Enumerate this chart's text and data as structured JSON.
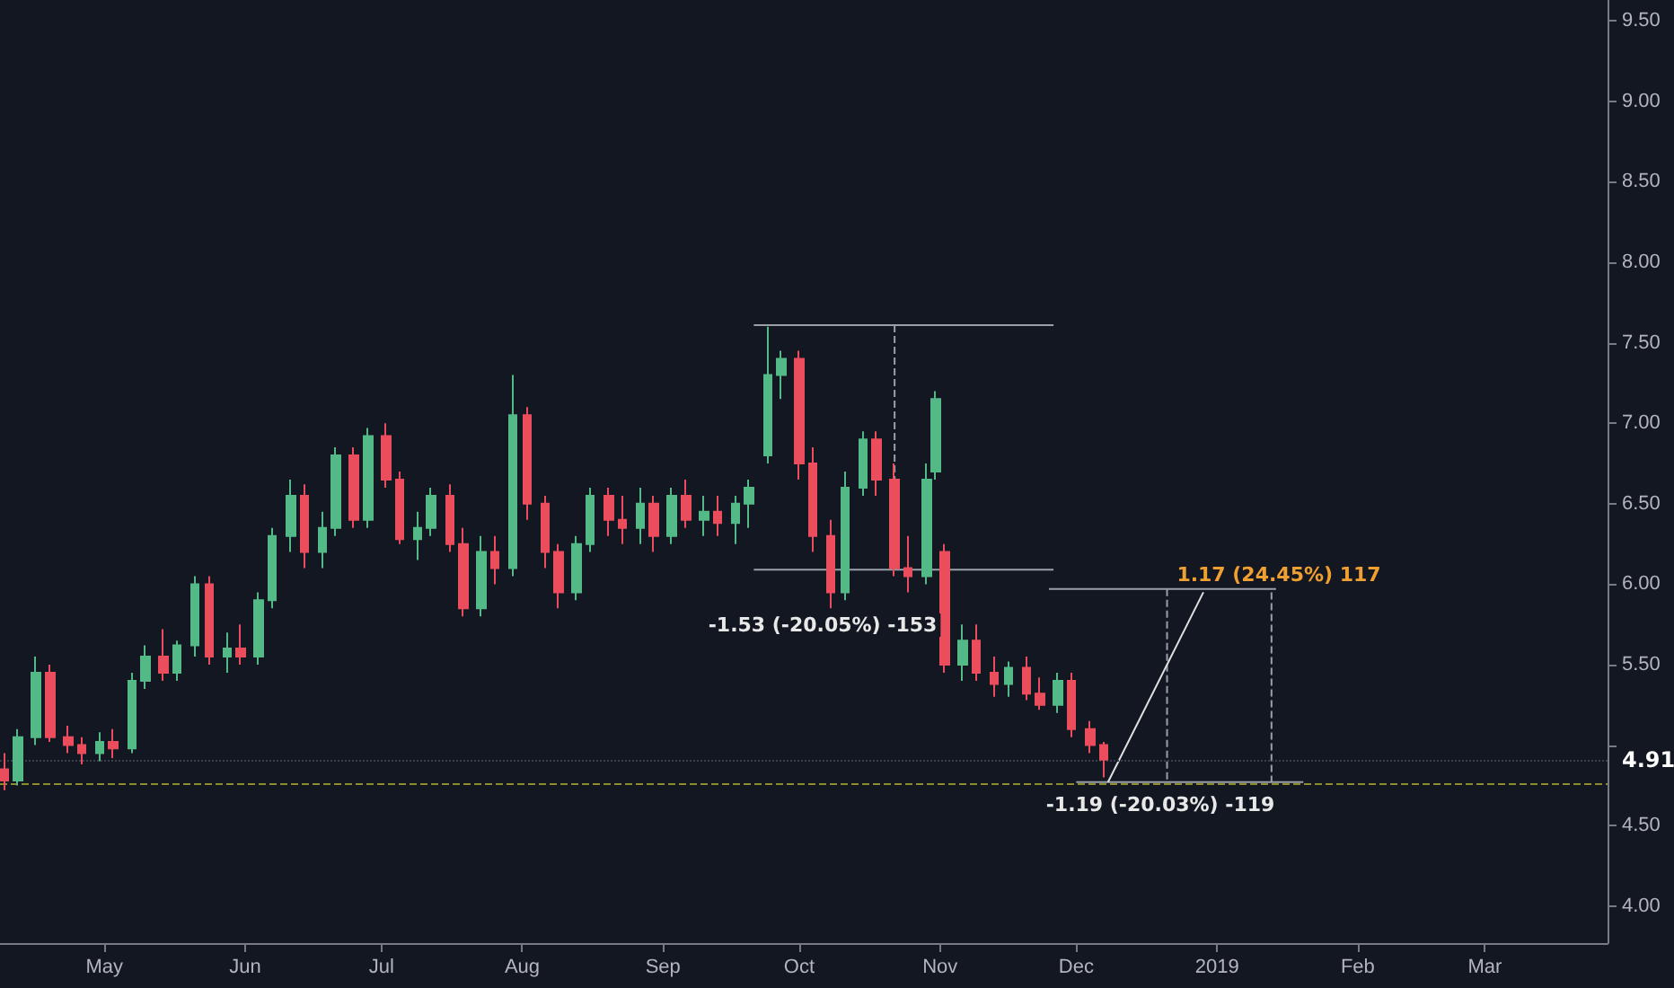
{
  "chart_data": {
    "type": "candlestick",
    "xlim": [
      "2018-04-08",
      "2019-03-28"
    ],
    "ylim": [
      3.77,
      9.63
    ],
    "xticks": [
      {
        "value": "2018-05-01",
        "label": "May"
      },
      {
        "value": "2018-06-01",
        "label": "Jun"
      },
      {
        "value": "2018-07-01",
        "label": "Jul"
      },
      {
        "value": "2018-08-01",
        "label": "Aug"
      },
      {
        "value": "2018-09-01",
        "label": "Sep"
      },
      {
        "value": "2018-10-01",
        "label": "Oct"
      },
      {
        "value": "2018-11-01",
        "label": "Nov"
      },
      {
        "value": "2018-12-01",
        "label": "Dec"
      },
      {
        "value": "2019-01-01",
        "label": "2019"
      },
      {
        "value": "2019-02-01",
        "label": "Feb"
      },
      {
        "value": "2019-03-01",
        "label": "Mar"
      }
    ],
    "yticks": [
      {
        "value": 4,
        "label": "4.00"
      },
      {
        "value": 4.5,
        "label": "4.50"
      },
      {
        "value": 5,
        "label": null
      },
      {
        "value": 5.5,
        "label": "5.50"
      },
      {
        "value": 6,
        "label": "6.00"
      },
      {
        "value": 6.5,
        "label": "6.50"
      },
      {
        "value": 7,
        "label": "7.00"
      },
      {
        "value": 7.5,
        "label": "7.50"
      },
      {
        "value": 8,
        "label": "8.00"
      },
      {
        "value": 8.5,
        "label": "8.50"
      },
      {
        "value": 9,
        "label": "9.00"
      },
      {
        "value": 9.5,
        "label": "9.50"
      }
    ],
    "grid": false,
    "series": [
      {
        "colors": [
          "#eb4d5c",
          "#53b987",
          "#53b987",
          "#eb4d5c",
          "#eb4d5c",
          "#eb4d5c",
          "#53b987",
          "#eb4d5c",
          "#53b987",
          "#53b987",
          "#eb4d5c",
          "#53b987",
          "#53b987",
          "#eb4d5c",
          "#53b987",
          "#eb4d5c",
          "#53b987",
          "#53b987",
          "#53b987",
          "#eb4d5c",
          "#53b987",
          "#53b987",
          "#eb4d5c",
          "#53b987",
          "#eb4d5c",
          "#eb4d5c",
          "#53b987",
          "#53b987",
          "#eb4d5c",
          "#eb4d5c",
          "#53b987",
          "#eb4d5c",
          "#53b987",
          "#eb4d5c",
          "#eb4d5c",
          "#eb4d5c",
          "#53b987",
          "#53b987",
          "#eb4d5c",
          "#eb4d5c",
          "#53b987",
          "#eb4d5c",
          "#53b987",
          "#eb4d5c",
          "#53b987",
          "#eb4d5c",
          "#53b987",
          "#53b987",
          "#53b987",
          "#53b987",
          "#eb4d5c",
          "#eb4d5c",
          "#eb4d5c",
          "#53b987",
          "#53b987",
          "#eb4d5c",
          "#eb4d5c",
          "#eb4d5c",
          "#53b987",
          "#53b987",
          "#eb4d5c",
          "#53b987",
          "#eb4d5c",
          "#eb4d5c",
          "#53b987",
          "#eb4d5c",
          "#eb4d5c",
          "#53b987",
          "#eb4d5c",
          "#eb4d5c",
          "#eb4d5c"
        ],
        "x": [
          "2018-04-09",
          "2018-04-12",
          "2018-04-16",
          "2018-04-19",
          "2018-04-23",
          "2018-04-26",
          "2018-04-30",
          "2018-05-03",
          "2018-05-07",
          "2018-05-10",
          "2018-05-14",
          "2018-05-17",
          "2018-05-21",
          "2018-05-24",
          "2018-05-28",
          "2018-05-31",
          "2018-06-04",
          "2018-06-07",
          "2018-06-11",
          "2018-06-14",
          "2018-06-18",
          "2018-06-21",
          "2018-06-25",
          "2018-06-28",
          "2018-07-02",
          "2018-07-05",
          "2018-07-09",
          "2018-07-12",
          "2018-07-16",
          "2018-07-19",
          "2018-07-23",
          "2018-07-26",
          "2018-07-30",
          "2018-08-02",
          "2018-08-06",
          "2018-08-09",
          "2018-08-13",
          "2018-08-16",
          "2018-08-20",
          "2018-08-23",
          "2018-08-27",
          "2018-08-30",
          "2018-09-03",
          "2018-09-06",
          "2018-09-10",
          "2018-09-13",
          "2018-09-17",
          "2018-09-20",
          "2018-09-24",
          "2018-09-27",
          "2018-10-01",
          "2018-10-04",
          "2018-10-08",
          "2018-10-11",
          "2018-10-15",
          "2018-10-18",
          "2018-10-22",
          "2018-10-25",
          "2018-10-29",
          "2018-10-31",
          "2018-11-02",
          "2018-11-06",
          "2018-11-09",
          "2018-11-13",
          "2018-11-16",
          "2018-11-20",
          "2018-11-23",
          "2018-11-27",
          "2018-11-30",
          "2018-12-04",
          "2018-12-07"
        ],
        "ohlc": [
          [
            4.85,
            4.95,
            4.72,
            4.78
          ],
          [
            4.78,
            5.1,
            4.75,
            5.05
          ],
          [
            5.05,
            5.55,
            5.0,
            5.45
          ],
          [
            5.45,
            5.5,
            5.02,
            5.05
          ],
          [
            5.05,
            5.12,
            4.95,
            5.0
          ],
          [
            5.0,
            5.05,
            4.88,
            4.95
          ],
          [
            4.95,
            5.08,
            4.9,
            5.02
          ],
          [
            5.02,
            5.1,
            4.92,
            4.98
          ],
          [
            4.98,
            5.45,
            4.95,
            5.4
          ],
          [
            5.4,
            5.62,
            5.35,
            5.55
          ],
          [
            5.55,
            5.72,
            5.4,
            5.45
          ],
          [
            5.45,
            5.65,
            5.4,
            5.62
          ],
          [
            5.62,
            6.05,
            5.55,
            6.0
          ],
          [
            6.0,
            6.05,
            5.5,
            5.55
          ],
          [
            5.55,
            5.7,
            5.45,
            5.6
          ],
          [
            5.6,
            5.75,
            5.5,
            5.55
          ],
          [
            5.55,
            5.95,
            5.5,
            5.9
          ],
          [
            5.9,
            6.35,
            5.85,
            6.3
          ],
          [
            6.3,
            6.65,
            6.2,
            6.55
          ],
          [
            6.55,
            6.62,
            6.1,
            6.2
          ],
          [
            6.2,
            6.45,
            6.1,
            6.35
          ],
          [
            6.35,
            6.85,
            6.3,
            6.8
          ],
          [
            6.8,
            6.85,
            6.35,
            6.4
          ],
          [
            6.4,
            6.97,
            6.35,
            6.92
          ],
          [
            6.92,
            7.0,
            6.6,
            6.65
          ],
          [
            6.65,
            6.7,
            6.25,
            6.28
          ],
          [
            6.28,
            6.45,
            6.15,
            6.35
          ],
          [
            6.35,
            6.6,
            6.3,
            6.55
          ],
          [
            6.55,
            6.62,
            6.2,
            6.25
          ],
          [
            6.25,
            6.35,
            5.8,
            5.85
          ],
          [
            5.85,
            6.3,
            5.8,
            6.2
          ],
          [
            6.2,
            6.3,
            6.0,
            6.1
          ],
          [
            6.1,
            7.3,
            6.05,
            7.05
          ],
          [
            7.05,
            7.1,
            6.4,
            6.5
          ],
          [
            6.5,
            6.55,
            6.1,
            6.2
          ],
          [
            6.2,
            6.25,
            5.85,
            5.95
          ],
          [
            5.95,
            6.3,
            5.9,
            6.25
          ],
          [
            6.25,
            6.6,
            6.2,
            6.55
          ],
          [
            6.55,
            6.6,
            6.3,
            6.4
          ],
          [
            6.4,
            6.55,
            6.25,
            6.35
          ],
          [
            6.35,
            6.6,
            6.25,
            6.5
          ],
          [
            6.5,
            6.55,
            6.2,
            6.3
          ],
          [
            6.3,
            6.6,
            6.25,
            6.55
          ],
          [
            6.55,
            6.65,
            6.35,
            6.4
          ],
          [
            6.4,
            6.55,
            6.3,
            6.45
          ],
          [
            6.45,
            6.55,
            6.3,
            6.38
          ],
          [
            6.38,
            6.55,
            6.25,
            6.5
          ],
          [
            6.5,
            6.65,
            6.35,
            6.6
          ],
          [
            6.8,
            7.6,
            6.75,
            7.3
          ],
          [
            7.3,
            7.45,
            7.15,
            7.4
          ],
          [
            7.4,
            7.45,
            6.65,
            6.75
          ],
          [
            6.75,
            6.85,
            6.2,
            6.3
          ],
          [
            6.3,
            6.4,
            5.85,
            5.95
          ],
          [
            5.95,
            6.7,
            5.9,
            6.6
          ],
          [
            6.6,
            6.95,
            6.55,
            6.9
          ],
          [
            6.9,
            6.95,
            6.55,
            6.65
          ],
          [
            6.65,
            6.75,
            6.05,
            6.1
          ],
          [
            6.1,
            6.3,
            5.95,
            6.05
          ],
          [
            6.05,
            6.75,
            6.0,
            6.65
          ],
          [
            6.7,
            7.2,
            6.65,
            7.15
          ],
          [
            6.2,
            6.25,
            5.45,
            5.5
          ],
          [
            5.5,
            5.75,
            5.4,
            5.65
          ],
          [
            5.65,
            5.75,
            5.4,
            5.45
          ],
          [
            5.45,
            5.55,
            5.3,
            5.38
          ],
          [
            5.38,
            5.52,
            5.3,
            5.48
          ],
          [
            5.48,
            5.55,
            5.28,
            5.32
          ],
          [
            5.32,
            5.42,
            5.22,
            5.25
          ],
          [
            5.25,
            5.45,
            5.2,
            5.4
          ],
          [
            5.4,
            5.45,
            5.05,
            5.1
          ],
          [
            5.1,
            5.15,
            4.95,
            5.0
          ],
          [
            5.0,
            5.02,
            4.8,
            4.91
          ]
        ]
      },
      {
        "type": "line",
        "color": "#9aa0a8",
        "line_style": "solid",
        "x": [
          "2018-09-21",
          "2018-11-26"
        ],
        "values": [
          7.61,
          7.61
        ]
      },
      {
        "type": "line",
        "color": "#9aa0a8",
        "line_style": "solid",
        "x": [
          "2018-09-21",
          "2018-11-26"
        ],
        "values": [
          6.09,
          6.09
        ]
      },
      {
        "type": "line",
        "color": "#9aa0a8",
        "line_style": "dashed",
        "x": [
          "2018-10-22",
          "2018-10-22"
        ],
        "values": [
          7.61,
          6.09
        ]
      },
      {
        "type": "line",
        "color": "#9aa0a8",
        "line_style": "solid",
        "x": [
          "2018-11-25",
          "2019-01-14"
        ],
        "values": [
          5.97,
          5.97
        ]
      },
      {
        "type": "line",
        "color": "#9aa0a8",
        "line_style": "solid",
        "x": [
          "2018-12-01",
          "2019-01-20"
        ],
        "values": [
          4.77,
          4.77
        ]
      },
      {
        "type": "line",
        "color": "#9aa0a8",
        "line_style": "dashed",
        "x": [
          "2018-12-21",
          "2018-12-21"
        ],
        "values": [
          5.97,
          4.77
        ]
      },
      {
        "type": "line",
        "color": "#9aa0a8",
        "line_style": "dashed",
        "x": [
          "2019-01-13",
          "2019-01-13"
        ],
        "values": [
          5.95,
          4.77
        ]
      },
      {
        "type": "line",
        "color": "#e0e0e0",
        "line_style": "solid",
        "x": [
          "2018-12-08",
          "2018-12-29"
        ],
        "values": [
          4.77,
          5.95
        ]
      }
    ],
    "ref_lines": [
      {
        "axis": "y",
        "value": 4.76,
        "color": "#8c8c2e",
        "line_style": "dashed"
      },
      {
        "axis": "y",
        "value": 4.91,
        "label": "4.91",
        "color": "#3a3f4b",
        "line_style": "dotted"
      }
    ],
    "annotations": [
      "-1.53 (-20.05%) -153",
      "-1.19 (-20.03%) -119",
      "1.17 (24.45%) 117"
    ]
  }
}
